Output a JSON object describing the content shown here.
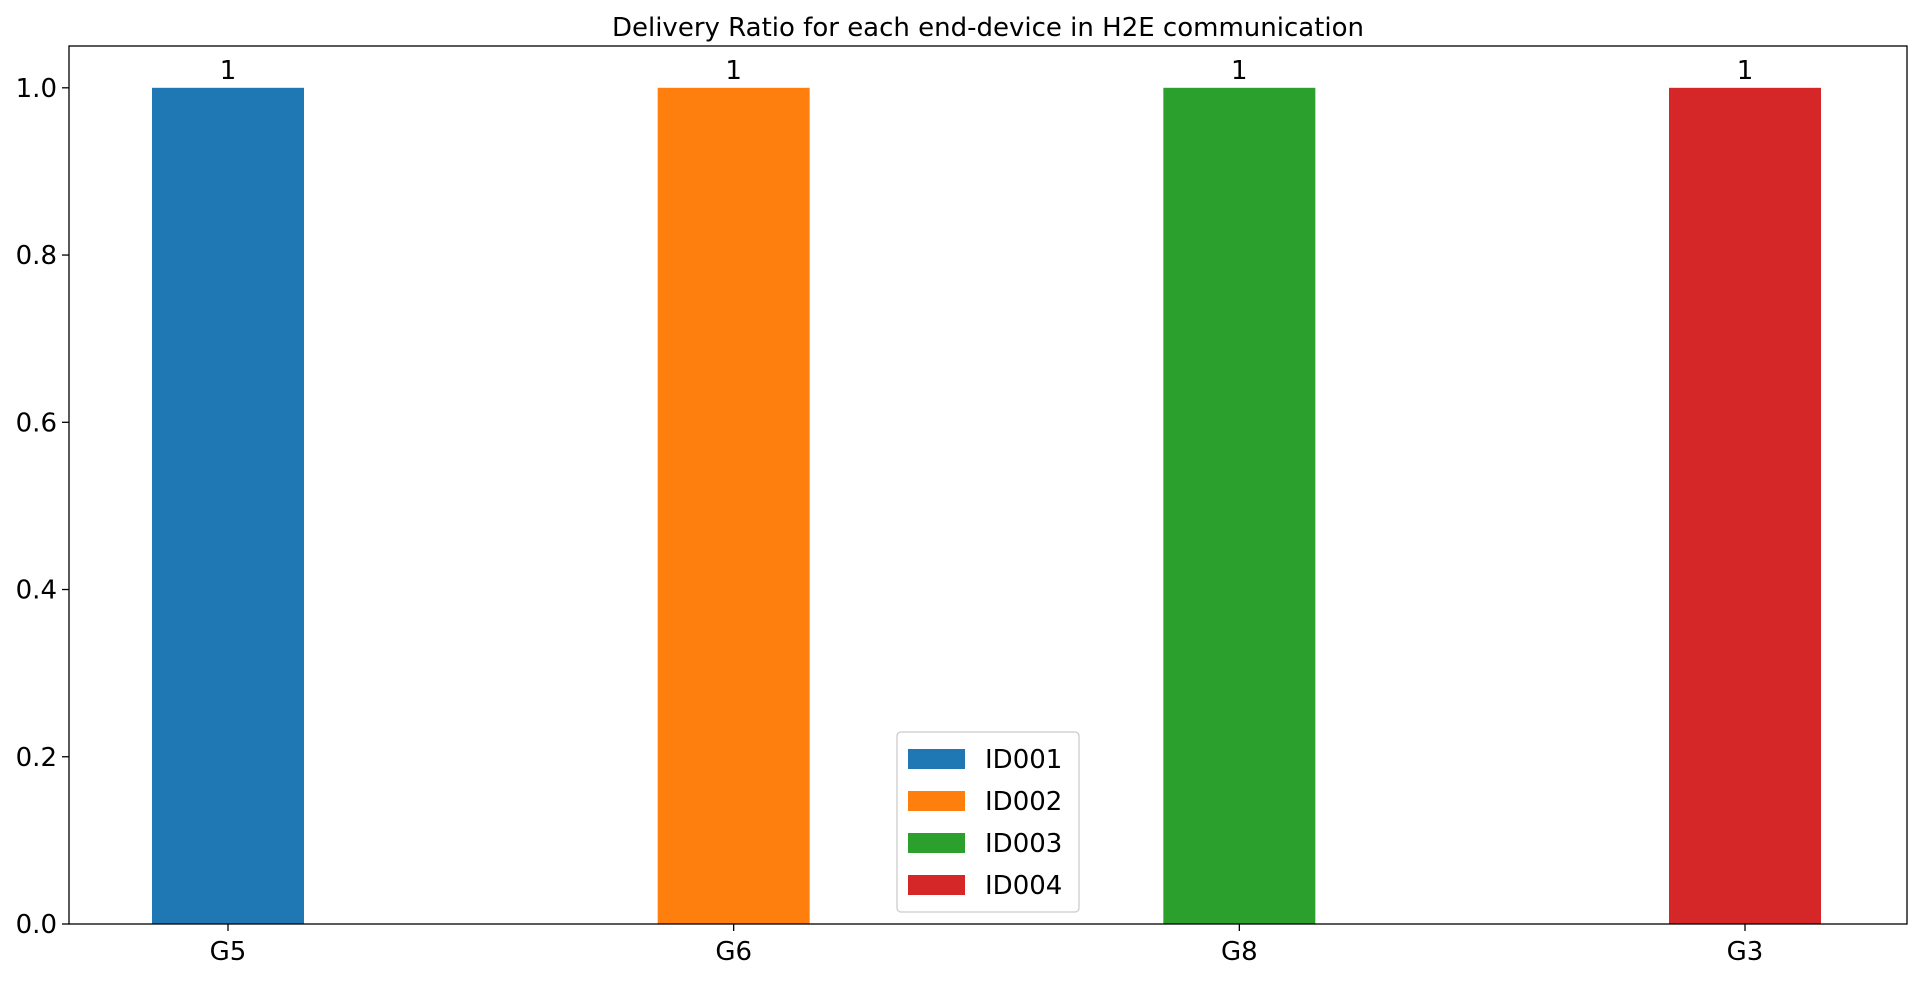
{
  "chart_data": {
    "type": "bar",
    "title": "Delivery Ratio for each end-device in H2E communication",
    "xlabel": "",
    "ylabel": "",
    "categories": [
      "G5",
      "G6",
      "G8",
      "G3"
    ],
    "series": [
      {
        "name": "ID001",
        "color": "#1f77b4",
        "category_index": 0,
        "value": 1,
        "value_label": "1"
      },
      {
        "name": "ID002",
        "color": "#ff7f0e",
        "category_index": 1,
        "value": 1,
        "value_label": "1"
      },
      {
        "name": "ID003",
        "color": "#2ca02c",
        "category_index": 2,
        "value": 1,
        "value_label": "1"
      },
      {
        "name": "ID004",
        "color": "#d62728",
        "category_index": 3,
        "value": 1,
        "value_label": "1"
      }
    ],
    "ylim": [
      0,
      1.05
    ],
    "yticks": [
      0.0,
      0.2,
      0.4,
      0.6,
      0.8,
      1.0
    ],
    "ytick_labels": [
      "0.0",
      "0.2",
      "0.4",
      "0.6",
      "0.8",
      "1.0"
    ],
    "grid": false,
    "legend_position": "lower-center"
  }
}
